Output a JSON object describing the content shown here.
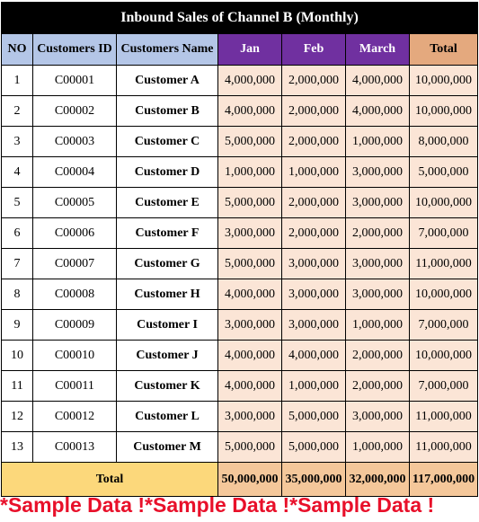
{
  "title": "Inbound Sales of Channel B (Monthly)",
  "headers": {
    "no": "NO",
    "customer_id": "Customers ID",
    "customer_name": "Customers Name",
    "jan": "Jan",
    "feb": "Feb",
    "march": "March",
    "total": "Total"
  },
  "rows": [
    {
      "no": "1",
      "id": "C00001",
      "name": "Customer A",
      "jan": "4,000,000",
      "feb": "2,000,000",
      "march": "4,000,000",
      "total": "10,000,000"
    },
    {
      "no": "2",
      "id": "C00002",
      "name": "Customer B",
      "jan": "4,000,000",
      "feb": "2,000,000",
      "march": "4,000,000",
      "total": "10,000,000"
    },
    {
      "no": "3",
      "id": "C00003",
      "name": "Customer C",
      "jan": "5,000,000",
      "feb": "2,000,000",
      "march": "1,000,000",
      "total": "8,000,000"
    },
    {
      "no": "4",
      "id": "C00004",
      "name": "Customer D",
      "jan": "1,000,000",
      "feb": "1,000,000",
      "march": "3,000,000",
      "total": "5,000,000"
    },
    {
      "no": "5",
      "id": "C00005",
      "name": "Customer E",
      "jan": "5,000,000",
      "feb": "2,000,000",
      "march": "3,000,000",
      "total": "10,000,000"
    },
    {
      "no": "6",
      "id": "C00006",
      "name": "Customer F",
      "jan": "3,000,000",
      "feb": "2,000,000",
      "march": "2,000,000",
      "total": "7,000,000"
    },
    {
      "no": "7",
      "id": "C00007",
      "name": "Customer G",
      "jan": "5,000,000",
      "feb": "3,000,000",
      "march": "3,000,000",
      "total": "11,000,000"
    },
    {
      "no": "8",
      "id": "C00008",
      "name": "Customer H",
      "jan": "4,000,000",
      "feb": "3,000,000",
      "march": "3,000,000",
      "total": "10,000,000"
    },
    {
      "no": "9",
      "id": "C00009",
      "name": "Customer I",
      "jan": "3,000,000",
      "feb": "3,000,000",
      "march": "1,000,000",
      "total": "7,000,000"
    },
    {
      "no": "10",
      "id": "C00010",
      "name": "Customer J",
      "jan": "4,000,000",
      "feb": "4,000,000",
      "march": "2,000,000",
      "total": "10,000,000"
    },
    {
      "no": "11",
      "id": "C00011",
      "name": "Customer K",
      "jan": "4,000,000",
      "feb": "1,000,000",
      "march": "2,000,000",
      "total": "7,000,000"
    },
    {
      "no": "12",
      "id": "C00012",
      "name": "Customer L",
      "jan": "3,000,000",
      "feb": "5,000,000",
      "march": "3,000,000",
      "total": "11,000,000"
    },
    {
      "no": "13",
      "id": "C00013",
      "name": "Customer M",
      "jan": "5,000,000",
      "feb": "5,000,000",
      "march": "1,000,000",
      "total": "11,000,000"
    }
  ],
  "totals": {
    "label": "Total",
    "jan": "50,000,000",
    "feb": "35,000,000",
    "march": "32,000,000",
    "total": "117,000,000"
  },
  "watermark": "*Sample Data !*Sample Data !*Sample Data !",
  "colors": {
    "title_bg": "#000000",
    "header_blue": "#b4c6e7",
    "header_purple": "#7030a0",
    "header_total": "#e4a97e",
    "data_fill": "#fbe5d6",
    "total_label_fill": "#fcd87b",
    "total_value_fill": "#f4c79a",
    "watermark_red": "#e8102a"
  }
}
